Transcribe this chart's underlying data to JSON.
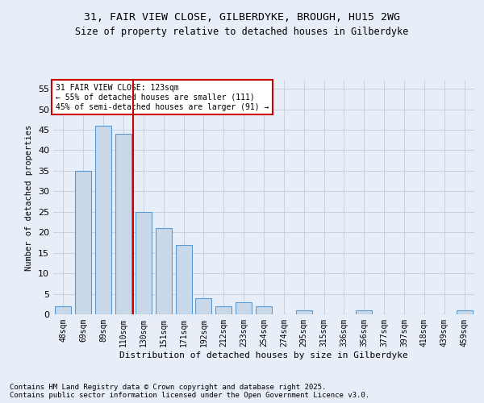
{
  "title1": "31, FAIR VIEW CLOSE, GILBERDYKE, BROUGH, HU15 2WG",
  "title2": "Size of property relative to detached houses in Gilberdyke",
  "xlabel": "Distribution of detached houses by size in Gilberdyke",
  "ylabel": "Number of detached properties",
  "categories": [
    "48sqm",
    "69sqm",
    "89sqm",
    "110sqm",
    "130sqm",
    "151sqm",
    "171sqm",
    "192sqm",
    "212sqm",
    "233sqm",
    "254sqm",
    "274sqm",
    "295sqm",
    "315sqm",
    "336sqm",
    "356sqm",
    "377sqm",
    "397sqm",
    "418sqm",
    "439sqm",
    "459sqm"
  ],
  "values": [
    2,
    35,
    46,
    44,
    25,
    21,
    17,
    4,
    2,
    3,
    2,
    0,
    1,
    0,
    0,
    1,
    0,
    0,
    0,
    0,
    1
  ],
  "bar_color": "#c8d8e8",
  "bar_edge_color": "#5b9bd5",
  "vline_color": "#cc0000",
  "annotation_text": "31 FAIR VIEW CLOSE: 123sqm\n← 55% of detached houses are smaller (111)\n45% of semi-detached houses are larger (91) →",
  "annotation_box_color": "#ffffff",
  "annotation_box_edge": "#cc0000",
  "ylim": [
    0,
    57
  ],
  "yticks": [
    0,
    5,
    10,
    15,
    20,
    25,
    30,
    35,
    40,
    45,
    50,
    55
  ],
  "footer1": "Contains HM Land Registry data © Crown copyright and database right 2025.",
  "footer2": "Contains public sector information licensed under the Open Government Licence v3.0.",
  "bg_color": "#e8eef8",
  "grid_color": "#c0cce0"
}
